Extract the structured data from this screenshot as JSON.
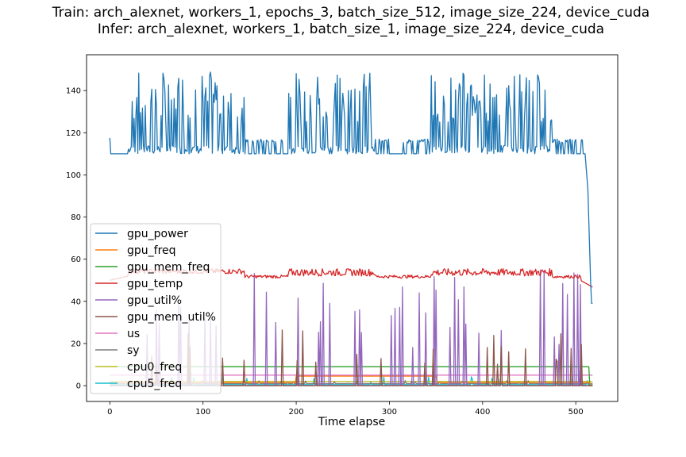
{
  "chart_data": {
    "type": "line",
    "title_lines": [
      "Train: arch_alexnet, workers_1, epochs_3, batch_size_512, image_size_224, device_cuda",
      "Infer: arch_alexnet, workers_1, batch_size_1, image_size_224, device_cuda"
    ],
    "xlabel": "Time elapse",
    "ylabel": "",
    "xlim": [
      -25,
      545
    ],
    "ylim": [
      -7.5,
      157
    ],
    "xticks": [
      0,
      100,
      200,
      300,
      400,
      500
    ],
    "yticks": [
      0,
      20,
      40,
      60,
      80,
      100,
      120,
      140
    ],
    "legend_location": "lower-left",
    "grid": false,
    "series": [
      {
        "name": "gpu_power",
        "color": "#1f77b4",
        "level": 110,
        "active_high": [
          112,
          149
        ],
        "active_low": 110,
        "mid": [
          110,
          117
        ],
        "end_drop": [
          [
            510,
            110
          ],
          [
            513,
            93
          ],
          [
            516,
            48
          ],
          [
            517,
            39
          ]
        ]
      },
      {
        "name": "gpu_freq",
        "color": "#ff7f0e",
        "level": 1.5,
        "bump": [
          200,
          350,
          4.5
        ]
      },
      {
        "name": "gpu_mem_freq",
        "color": "#2ca02c",
        "level": 9
      },
      {
        "name": "gpu_temp",
        "color": "#d62728",
        "level": 52,
        "range": [
          50,
          56
        ],
        "end": 47
      },
      {
        "name": "gpu_util%",
        "color": "#9467bd",
        "level": 0,
        "spike_max": 56
      },
      {
        "name": "gpu_mem_util%",
        "color": "#8c564b",
        "level": 0,
        "spike_max": 27
      },
      {
        "name": "us",
        "color": "#e377c2",
        "level": 5
      },
      {
        "name": "sy",
        "color": "#7f7f7f",
        "level": 1
      },
      {
        "name": "cpu0_freq",
        "color": "#bcbd22",
        "level": 2
      },
      {
        "name": "cpu5_freq",
        "color": "#17becf",
        "level": 0.5
      }
    ]
  }
}
